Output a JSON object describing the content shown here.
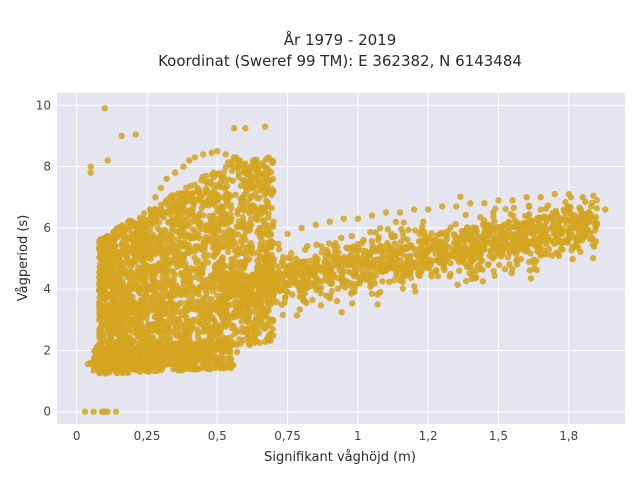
{
  "chart_data": {
    "type": "scatter",
    "title": "År 1979 - 2019",
    "subtitle": "Koordinat (Sweref 99 TM): E 362382, N 6143484",
    "xlabel": "Signifikant våghöjd (m)",
    "ylabel": "Vågperiod (s)",
    "xlim": [
      -0.07,
      1.95
    ],
    "ylim": [
      -0.4,
      10.4
    ],
    "x_ticks": [
      0,
      0.25,
      0.5,
      0.75,
      1.0,
      1.25,
      1.5,
      1.75
    ],
    "x_tick_labels": [
      "0",
      "0,25",
      "0,5",
      "0,75",
      "1",
      "1,2",
      "1,5",
      "1,8"
    ],
    "y_ticks": [
      0,
      2,
      4,
      6,
      8,
      10
    ],
    "y_tick_labels": [
      "0",
      "2",
      "4",
      "6",
      "8",
      "10"
    ],
    "grid": true,
    "series": [
      {
        "color": "#D4A520",
        "points": [
          [
            0.04,
            1.55
          ],
          [
            0.05,
            1.6
          ],
          [
            0.06,
            1.45
          ],
          [
            0.07,
            1.7
          ],
          [
            0.08,
            1.9
          ],
          [
            0.09,
            2.1
          ],
          [
            0.1,
            2.3
          ],
          [
            0.11,
            2.0
          ],
          [
            0.12,
            1.8
          ],
          [
            0.13,
            1.6
          ],
          [
            0.14,
            1.5
          ],
          [
            0.15,
            1.55
          ],
          [
            0.16,
            1.7
          ],
          [
            0.18,
            1.75
          ],
          [
            0.2,
            1.8
          ],
          [
            0.22,
            1.85
          ],
          [
            0.25,
            1.9
          ],
          [
            0.28,
            1.95
          ],
          [
            0.3,
            1.95
          ],
          [
            0.33,
            2.0
          ],
          [
            0.36,
            2.05
          ],
          [
            0.4,
            2.1
          ],
          [
            0.43,
            2.1
          ],
          [
            0.46,
            2.1
          ],
          [
            0.5,
            2.15
          ],
          [
            0.08,
            3.0
          ],
          [
            0.1,
            3.4
          ],
          [
            0.12,
            3.8
          ],
          [
            0.14,
            4.2
          ],
          [
            0.16,
            4.6
          ],
          [
            0.18,
            5.0
          ],
          [
            0.2,
            5.4
          ],
          [
            0.22,
            5.8
          ],
          [
            0.24,
            6.2
          ],
          [
            0.26,
            6.6
          ],
          [
            0.28,
            7.0
          ],
          [
            0.3,
            7.3
          ],
          [
            0.32,
            7.6
          ],
          [
            0.35,
            7.8
          ],
          [
            0.38,
            8.0
          ],
          [
            0.4,
            8.2
          ],
          [
            0.42,
            8.3
          ],
          [
            0.45,
            8.4
          ],
          [
            0.48,
            8.45
          ],
          [
            0.5,
            8.5
          ],
          [
            0.53,
            8.4
          ],
          [
            0.56,
            8.3
          ],
          [
            0.58,
            8.2
          ],
          [
            0.6,
            8.1
          ],
          [
            0.62,
            8.0
          ],
          [
            0.2,
            3.0
          ],
          [
            0.25,
            3.2
          ],
          [
            0.3,
            3.5
          ],
          [
            0.35,
            3.8
          ],
          [
            0.4,
            4.0
          ],
          [
            0.45,
            4.3
          ],
          [
            0.5,
            4.5
          ],
          [
            0.55,
            4.7
          ],
          [
            0.6,
            4.9
          ],
          [
            0.65,
            5.0
          ],
          [
            0.3,
            2.5
          ],
          [
            0.35,
            2.7
          ],
          [
            0.4,
            2.9
          ],
          [
            0.45,
            3.1
          ],
          [
            0.5,
            3.3
          ],
          [
            0.55,
            3.5
          ],
          [
            0.6,
            3.6
          ],
          [
            0.65,
            3.7
          ],
          [
            0.7,
            3.8
          ],
          [
            0.75,
            3.9
          ],
          [
            0.8,
            4.0
          ],
          [
            0.85,
            4.1
          ],
          [
            0.9,
            4.2
          ],
          [
            0.95,
            4.3
          ],
          [
            1.0,
            4.4
          ],
          [
            1.05,
            4.5
          ],
          [
            1.1,
            4.6
          ],
          [
            1.15,
            4.7
          ],
          [
            1.2,
            4.8
          ],
          [
            1.25,
            4.9
          ],
          [
            1.3,
            5.0
          ],
          [
            1.35,
            5.1
          ],
          [
            1.4,
            5.2
          ],
          [
            1.45,
            5.3
          ],
          [
            1.5,
            5.4
          ],
          [
            1.55,
            5.5
          ],
          [
            1.6,
            5.6
          ],
          [
            1.65,
            5.7
          ],
          [
            1.7,
            5.8
          ],
          [
            1.75,
            5.9
          ],
          [
            1.8,
            6.0
          ],
          [
            1.85,
            6.1
          ],
          [
            0.7,
            5.5
          ],
          [
            0.75,
            5.8
          ],
          [
            0.8,
            6.0
          ],
          [
            0.85,
            6.1
          ],
          [
            0.9,
            6.2
          ],
          [
            0.95,
            6.3
          ],
          [
            1.0,
            6.3
          ],
          [
            1.05,
            6.4
          ],
          [
            1.1,
            6.5
          ],
          [
            1.15,
            6.5
          ],
          [
            1.2,
            6.6
          ],
          [
            1.25,
            6.6
          ],
          [
            1.3,
            6.7
          ],
          [
            1.35,
            6.7
          ],
          [
            1.4,
            6.8
          ],
          [
            1.45,
            6.8
          ],
          [
            1.5,
            6.9
          ],
          [
            1.55,
            6.9
          ],
          [
            1.6,
            7.0
          ],
          [
            1.65,
            7.0
          ],
          [
            1.7,
            7.1
          ],
          [
            1.75,
            7.1
          ],
          [
            1.8,
            7.0
          ],
          [
            1.85,
            6.9
          ],
          [
            0.1,
            9.9
          ],
          [
            0.16,
            9.0
          ],
          [
            0.21,
            9.05
          ],
          [
            0.56,
            9.25
          ],
          [
            0.6,
            9.25
          ],
          [
            0.67,
            9.3
          ],
          [
            0.05,
            8.0
          ],
          [
            0.05,
            7.8
          ],
          [
            0.11,
            8.2
          ],
          [
            0.03,
            0.0
          ],
          [
            0.06,
            0.0
          ],
          [
            0.09,
            0.0
          ],
          [
            0.1,
            0.0
          ],
          [
            0.11,
            0.0
          ],
          [
            0.14,
            0.0
          ],
          [
            0.6,
            5.6
          ],
          [
            0.65,
            6.0
          ],
          [
            0.7,
            6.2
          ],
          [
            0.5,
            6.0
          ],
          [
            0.55,
            6.3
          ],
          [
            0.45,
            6.8
          ],
          [
            0.4,
            6.5
          ],
          [
            0.35,
            6.2
          ],
          [
            0.3,
            5.8
          ],
          [
            0.28,
            4.5
          ],
          [
            0.33,
            4.8
          ],
          [
            0.38,
            5.1
          ],
          [
            0.43,
            5.4
          ],
          [
            0.48,
            5.6
          ],
          [
            0.52,
            5.7
          ],
          [
            0.62,
            5.5
          ],
          [
            0.72,
            5.3
          ],
          [
            0.82,
            5.4
          ],
          [
            0.92,
            5.5
          ],
          [
            1.02,
            5.6
          ],
          [
            1.12,
            5.7
          ],
          [
            1.22,
            5.8
          ],
          [
            1.32,
            5.9
          ],
          [
            1.42,
            6.0
          ],
          [
            1.52,
            6.1
          ],
          [
            1.62,
            6.2
          ],
          [
            1.72,
            6.3
          ],
          [
            1.82,
            6.5
          ],
          [
            1.88,
            6.6
          ],
          [
            1.05,
            3.85
          ],
          [
            0.98,
            3.9
          ],
          [
            0.9,
            3.7
          ],
          [
            0.57,
            1.95
          ],
          [
            0.54,
            2.0
          ],
          [
            0.2,
            4.0
          ],
          [
            0.18,
            4.4
          ],
          [
            0.15,
            3.9
          ],
          [
            0.13,
            3.4
          ],
          [
            0.09,
            2.8
          ]
        ]
      }
    ]
  }
}
